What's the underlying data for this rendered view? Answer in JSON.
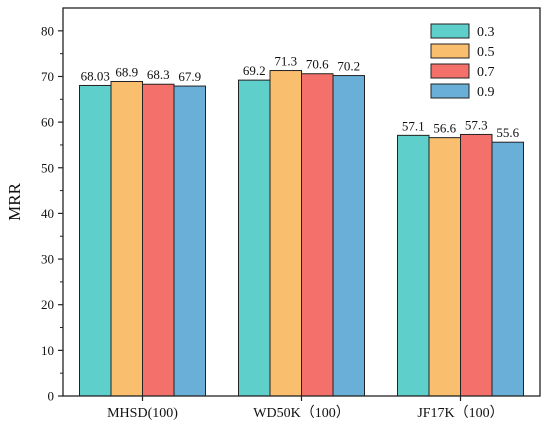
{
  "chart_data": {
    "type": "bar",
    "title": "",
    "xlabel": "",
    "ylabel": "MRR",
    "ylim": [
      0,
      85
    ],
    "yticks": [
      0,
      10,
      20,
      30,
      40,
      50,
      60,
      70,
      80
    ],
    "grid": false,
    "legend_position": "top-right",
    "categories": [
      "MHSD(100)",
      "WD50K（100）",
      "JF17K（100）"
    ],
    "series": [
      {
        "name": "0.3",
        "color": "#5ECFCB",
        "values": [
          68.03,
          69.2,
          57.1
        ],
        "labels": [
          "68.03",
          "69.2",
          "57.1"
        ]
      },
      {
        "name": "0.5",
        "color": "#F9BE6E",
        "values": [
          68.9,
          71.3,
          56.6
        ],
        "labels": [
          "68.9",
          "71.3",
          "56.6"
        ]
      },
      {
        "name": "0.7",
        "color": "#F4716B",
        "values": [
          68.3,
          70.6,
          57.3
        ],
        "labels": [
          "68.3",
          "70.6",
          "57.3"
        ]
      },
      {
        "name": "0.9",
        "color": "#6AAFD8",
        "values": [
          67.9,
          70.2,
          55.6
        ],
        "labels": [
          "67.9",
          "70.2",
          "55.6"
        ]
      }
    ]
  }
}
